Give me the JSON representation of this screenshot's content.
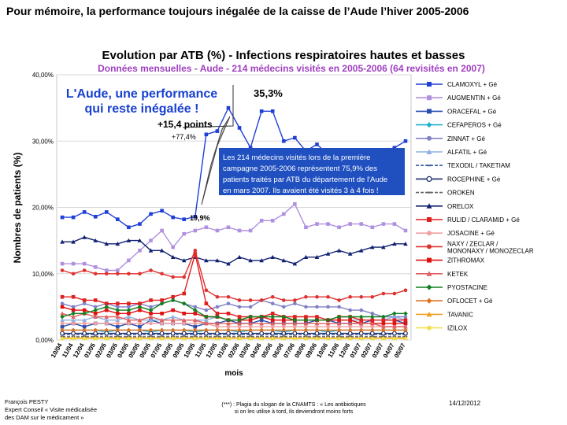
{
  "slide_title": "Pour mémoire, la performance toujours inégalée de la caisse de l’Aude l’hiver 2005-2006",
  "chart_data": {
    "type": "line",
    "title": "Evolution par ATB (%) - Infections respiratoires hautes et basses",
    "subtitle": "Données mensuelles - Aude - 214 médecins visités en 2005-2006 (64 revisités en 2007)",
    "ylabel": "Nombres de patients (%)",
    "xlabel": "mois",
    "ylim": [
      0,
      40
    ],
    "yticks": [
      "0,00%",
      "10,00%",
      "20,00%",
      "30,00%",
      "40,00%"
    ],
    "categories": [
      "10/04",
      "11/04",
      "12/04",
      "01/05",
      "02/05",
      "03/05",
      "04/05",
      "05/05",
      "06/05",
      "07/05",
      "08/05",
      "09/05",
      "10/05",
      "11/05",
      "12/05",
      "01/06",
      "02/06",
      "03/06",
      "04/06",
      "05/06",
      "06/06",
      "07/06",
      "08/06",
      "09/06",
      "10/06",
      "11/06",
      "12/06",
      "01/07",
      "02/07",
      "03/07",
      "04/07",
      "05/07"
    ],
    "series": [
      {
        "name": "CLAMOXYL + Gé",
        "color": "#1f3fd6",
        "marker": "square",
        "values": [
          18.5,
          18.5,
          19.3,
          18.6,
          19.3,
          18.2,
          17.0,
          17.5,
          19.0,
          19.5,
          18.5,
          18.2,
          18.6,
          31.0,
          31.5,
          35.0,
          32.0,
          29.0,
          34.5,
          34.5,
          30.0,
          30.5,
          28.5,
          29.5,
          28.0,
          28.5,
          28.0,
          28.5,
          28.5,
          28.5,
          29.0,
          30.0
        ]
      },
      {
        "name": "AUGMENTIN + Gé",
        "color": "#b090e0",
        "marker": "square",
        "values": [
          11.5,
          11.5,
          11.5,
          11.0,
          10.5,
          10.5,
          12.0,
          13.5,
          15.0,
          16.5,
          14.0,
          16.0,
          16.5,
          17.0,
          16.5,
          17.0,
          16.5,
          16.5,
          18.0,
          18.0,
          19.0,
          20.5,
          17.0,
          17.5,
          17.5,
          17.0,
          17.5,
          17.5,
          17.0,
          17.5,
          17.5,
          16.5
        ]
      },
      {
        "name": "ORACEFAL + Gé",
        "color": "#2a4fb0",
        "marker": "square",
        "values": [
          2.0,
          2.5,
          2.0,
          2.5,
          2.5,
          2.0,
          2.5,
          2.0,
          3.0,
          2.5,
          2.5,
          2.5,
          2.0,
          2.5,
          2.5,
          3.0,
          2.5,
          2.5,
          3.0,
          2.5,
          2.5,
          2.5,
          2.5,
          3.0,
          3.0,
          2.5,
          2.5,
          2.5,
          3.0,
          3.0,
          3.0,
          2.5
        ]
      },
      {
        "name": "CEFAPEROS + Gé",
        "color": "#20b0d0",
        "marker": "diamond",
        "values": [
          1.5,
          1.5,
          1.5,
          1.5,
          1.2,
          1.5,
          1.5,
          1.5,
          1.2,
          1.5,
          1.5,
          1.5,
          1.2,
          1.5,
          1.5,
          1.5,
          1.2,
          1.5,
          1.5,
          1.5,
          1.2,
          1.5,
          1.5,
          1.5,
          1.2,
          1.5,
          1.5,
          1.5,
          1.5,
          1.5,
          1.5,
          1.5
        ]
      },
      {
        "name": "ZINNAT + Gé",
        "color": "#8080c8",
        "marker": "circle",
        "values": [
          5.5,
          5.0,
          5.5,
          5.0,
          5.5,
          5.0,
          5.0,
          5.5,
          5.0,
          5.5,
          6.0,
          5.5,
          5.0,
          4.5,
          5.0,
          5.5,
          5.0,
          5.0,
          6.0,
          5.5,
          5.0,
          5.5,
          5.0,
          5.0,
          5.0,
          5.0,
          4.5,
          4.5,
          4.0,
          3.5,
          3.5,
          3.5
        ]
      },
      {
        "name": "ALFATIL + Gé",
        "color": "#90b0e0",
        "marker": "triangle",
        "values": [
          3.0,
          3.0,
          3.0,
          3.5,
          3.0,
          3.0,
          3.5,
          3.0,
          3.0,
          3.0,
          3.5,
          3.0,
          3.0,
          3.0,
          3.5,
          3.0,
          3.0,
          3.0,
          3.5,
          3.0,
          3.0,
          3.0,
          3.0,
          3.0,
          3.0,
          3.0,
          3.0,
          3.0,
          3.0,
          3.0,
          3.5,
          3.0
        ]
      },
      {
        "name": "TEXODIL / TAKETIAM",
        "color": "#4060a0",
        "marker": "dash",
        "values": [
          0.8,
          0.8,
          0.8,
          0.8,
          0.8,
          0.8,
          0.8,
          0.8,
          0.8,
          0.8,
          0.8,
          0.8,
          0.8,
          0.8,
          0.8,
          0.8,
          0.8,
          0.8,
          0.8,
          0.8,
          0.8,
          0.8,
          0.8,
          0.8,
          0.8,
          0.8,
          0.8,
          0.8,
          0.8,
          0.8,
          0.8,
          0.8
        ]
      },
      {
        "name": "ROCEPHINE + Gé",
        "color": "#1a2a6a",
        "marker": "circle-open",
        "values": [
          1.0,
          1.0,
          1.0,
          1.0,
          1.0,
          1.0,
          1.0,
          1.0,
          1.0,
          1.0,
          1.0,
          1.0,
          1.0,
          1.0,
          1.0,
          1.0,
          1.0,
          1.0,
          1.0,
          1.0,
          1.0,
          1.0,
          1.0,
          1.0,
          1.0,
          1.0,
          1.0,
          1.0,
          1.0,
          1.0,
          1.0,
          1.0
        ]
      },
      {
        "name": "OROKEN",
        "color": "#606060",
        "marker": "dash",
        "values": [
          0.5,
          0.5,
          0.5,
          0.5,
          0.5,
          0.5,
          0.5,
          0.5,
          0.5,
          0.5,
          0.5,
          0.5,
          0.5,
          0.5,
          0.5,
          0.5,
          0.5,
          0.5,
          0.5,
          0.5,
          0.5,
          0.5,
          0.5,
          0.5,
          0.5,
          0.5,
          0.5,
          0.5,
          0.5,
          0.5,
          0.5,
          0.5
        ]
      },
      {
        "name": "ORELOX",
        "color": "#102070",
        "marker": "triangle",
        "values": [
          14.8,
          14.8,
          15.5,
          15.0,
          14.5,
          14.5,
          15.0,
          15.0,
          13.5,
          13.5,
          12.5,
          12.0,
          12.5,
          12.0,
          12.0,
          11.5,
          12.5,
          12.0,
          12.0,
          12.5,
          12.0,
          11.5,
          12.5,
          12.5,
          13.0,
          13.5,
          13.0,
          13.5,
          14.0,
          14.0,
          14.5,
          14.5
        ]
      },
      {
        "name": "RULID / CLARAMID + Gé",
        "color": "#e02020",
        "marker": "square",
        "values": [
          6.5,
          6.5,
          6.0,
          6.0,
          5.5,
          5.5,
          5.5,
          5.5,
          6.0,
          6.0,
          6.5,
          7.0,
          13.0,
          5.5,
          4.0,
          4.0,
          3.5,
          3.5,
          3.5,
          4.0,
          3.5,
          3.5,
          3.5,
          3.5,
          3.0,
          3.5,
          3.5,
          3.0,
          3.0,
          3.0,
          3.0,
          3.0
        ]
      },
      {
        "name": "JOSACINE + Gé",
        "color": "#f0a0a0",
        "marker": "circle",
        "values": [
          2.5,
          2.5,
          2.5,
          2.5,
          2.5,
          2.5,
          2.5,
          2.5,
          2.5,
          2.5,
          2.5,
          2.5,
          2.5,
          2.5,
          2.0,
          2.0,
          2.0,
          2.0,
          2.0,
          2.0,
          2.0,
          2.0,
          2.0,
          2.0,
          2.0,
          2.0,
          2.0,
          2.0,
          2.0,
          2.0,
          2.0,
          2.0
        ]
      },
      {
        "name": "NAXY / ZECLAR / MONONAXY / MONOZECLAR",
        "color": "#e03030",
        "marker": "circle",
        "values": [
          10.5,
          10.0,
          10.5,
          10.0,
          10.0,
          10.0,
          10.0,
          10.0,
          10.5,
          10.0,
          9.5,
          9.5,
          13.5,
          7.5,
          6.5,
          6.5,
          6.0,
          6.0,
          6.0,
          6.5,
          6.0,
          6.0,
          6.5,
          6.5,
          6.5,
          6.0,
          6.5,
          6.5,
          6.5,
          7.0,
          7.0,
          7.5
        ]
      },
      {
        "name": "ZITHROMAX",
        "color": "#e01010",
        "marker": "square",
        "values": [
          5.0,
          4.5,
          4.5,
          4.0,
          4.5,
          4.0,
          4.0,
          4.5,
          4.0,
          4.0,
          4.5,
          4.0,
          4.0,
          3.5,
          3.5,
          3.0,
          3.0,
          3.0,
          3.5,
          3.0,
          3.0,
          3.0,
          3.0,
          3.0,
          3.0,
          3.0,
          3.0,
          2.5,
          2.5,
          2.5,
          2.5,
          2.5
        ]
      },
      {
        "name": "KETEK",
        "color": "#e06060",
        "marker": "triangle",
        "values": [
          4.0,
          3.5,
          4.0,
          3.5,
          3.5,
          3.5,
          3.0,
          3.0,
          3.5,
          3.0,
          3.0,
          3.0,
          3.0,
          2.5,
          2.5,
          2.5,
          2.5,
          2.5,
          2.5,
          2.5,
          2.5,
          2.5,
          2.5,
          2.5,
          2.5,
          2.5,
          2.5,
          2.5,
          2.5,
          2.0,
          2.0,
          2.0
        ]
      },
      {
        "name": "PYOSTACINE",
        "color": "#108020",
        "marker": "diamond",
        "values": [
          3.5,
          4.0,
          4.0,
          4.5,
          5.0,
          4.5,
          4.5,
          5.0,
          4.5,
          5.5,
          6.0,
          5.5,
          4.5,
          3.5,
          3.5,
          3.0,
          3.0,
          3.5,
          3.5,
          3.5,
          3.5,
          3.0,
          3.0,
          3.0,
          3.0,
          3.5,
          3.5,
          3.5,
          3.5,
          3.5,
          4.0,
          4.0
        ]
      },
      {
        "name": "OFLOCET + Gé",
        "color": "#e07020",
        "marker": "diamond",
        "values": [
          1.5,
          1.5,
          1.5,
          1.5,
          1.5,
          1.5,
          1.5,
          1.5,
          1.5,
          1.5,
          1.5,
          1.5,
          1.5,
          1.5,
          1.5,
          1.5,
          1.5,
          1.5,
          1.5,
          1.5,
          1.5,
          1.5,
          1.5,
          1.5,
          1.5,
          1.5,
          1.5,
          1.5,
          1.5,
          1.5,
          1.5,
          1.5
        ]
      },
      {
        "name": "TAVANIC",
        "color": "#f0a020",
        "marker": "triangle",
        "values": [
          0.3,
          0.3,
          0.3,
          0.3,
          0.3,
          0.3,
          0.3,
          0.3,
          0.3,
          0.3,
          0.3,
          0.3,
          0.3,
          0.3,
          0.3,
          0.3,
          0.3,
          0.3,
          0.3,
          0.3,
          0.3,
          0.3,
          0.3,
          0.3,
          0.3,
          0.3,
          0.3,
          0.3,
          0.3,
          0.3,
          0.3,
          0.3
        ]
      },
      {
        "name": "IZILOX",
        "color": "#f0e050",
        "marker": "circle",
        "values": [
          0.2,
          0.2,
          0.2,
          0.2,
          0.2,
          0.2,
          0.2,
          0.2,
          0.2,
          0.2,
          0.2,
          0.2,
          0.2,
          0.2,
          0.2,
          0.2,
          0.2,
          0.2,
          0.2,
          0.2,
          0.2,
          0.2,
          0.2,
          0.2,
          0.2,
          0.2,
          0.2,
          0.2,
          0.2,
          0.2,
          0.2,
          0.2
        ]
      }
    ],
    "annotations": {
      "callout_line1": "L'Aude, une performance",
      "callout_line2": "qui reste inégalée !",
      "points_gain": "+15,4 points",
      "percent_gain": "+77,4%",
      "peak_value": "35,3%",
      "base_value": "19,9%",
      "note_lines": [
        "Les 214 médecins visités lors de la première",
        "campagne 2005-2006 représentent 75,9% des",
        "patients traités par ATB du département de l'Aude",
        "en mars 2007. Ils avaient été visités 3 à 4 fois !"
      ]
    }
  },
  "footer": {
    "author_line1": "François PESTY",
    "author_line2": "Expert Conseil « Visite médicalisée",
    "author_line3": "des DAM sur le médicament »",
    "slogan_line1": "(***) : Plagia du slogan de la CNAMTS : « Les antibiotiques",
    "slogan_line2": "si on les utilise à tord, ils deviendront moins forts",
    "date": "14/12/2012"
  },
  "colors": {
    "title_red": "#e01818",
    "subtitle_purple": "#a040c0",
    "callout_blue": "#1840d0",
    "note_bg": "#2050c0"
  }
}
